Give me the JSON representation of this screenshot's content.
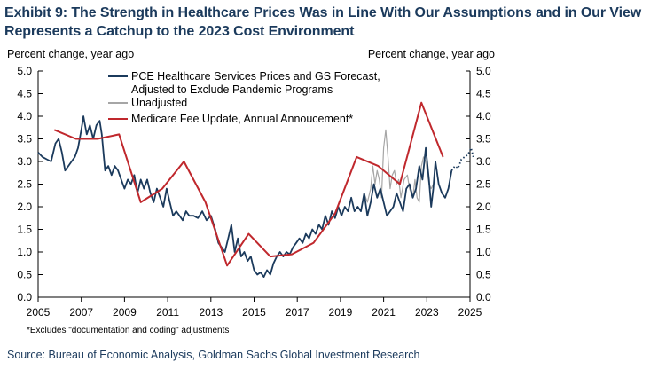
{
  "title": "Exhibit 9: The Strength in Healthcare Prices Was in Line With Our Assumptions and in Our View Represents a Catchup to the 2023 Cost Environment",
  "note": "*Excludes \"documentation and coding\" adjustments",
  "source": "Source: Bureau of Economic Analysis, Goldman Sachs Global Investment Research",
  "chart_data": {
    "type": "line",
    "ylabel_left": "Percent change, year ago",
    "ylabel_right": "Percent change, year ago",
    "xlim": [
      2005,
      2025
    ],
    "ylim": [
      0.0,
      5.0
    ],
    "x_ticks": [
      "2005",
      "2007",
      "2009",
      "2011",
      "2013",
      "2015",
      "2017",
      "2019",
      "2021",
      "2023",
      "2025"
    ],
    "y_ticks": [
      "0.0",
      "0.5",
      "1.0",
      "1.5",
      "2.0",
      "2.5",
      "3.0",
      "3.5",
      "4.0",
      "4.5",
      "5.0"
    ],
    "grid": false,
    "legend_position": "top-center",
    "legend": [
      "PCE Healthcare Services Prices and GS Forecast, Adjusted to Exclude Pandemic Programs",
      "Unadjusted",
      "Medicare Fee Update, Annual Annoucement*"
    ],
    "colors": {
      "pce": "#1b3a5c",
      "unadjusted": "#a6a6a6",
      "medicare": "#c0282d",
      "forecast": "#1b3a5c"
    },
    "series": [
      {
        "name": "PCE Healthcare Services Prices and GS Forecast, Adjusted to Exclude Pandemic Programs",
        "style": "solid",
        "points": [
          [
            2005.0,
            3.2
          ],
          [
            2005.2,
            3.1
          ],
          [
            2005.4,
            3.05
          ],
          [
            2005.6,
            3.0
          ],
          [
            2005.8,
            3.4
          ],
          [
            2005.95,
            3.5
          ],
          [
            2006.1,
            3.2
          ],
          [
            2006.25,
            2.8
          ],
          [
            2006.4,
            2.9
          ],
          [
            2006.55,
            3.0
          ],
          [
            2006.7,
            3.1
          ],
          [
            2006.85,
            3.3
          ],
          [
            2007.0,
            3.7
          ],
          [
            2007.1,
            4.0
          ],
          [
            2007.25,
            3.6
          ],
          [
            2007.4,
            3.8
          ],
          [
            2007.55,
            3.5
          ],
          [
            2007.7,
            3.8
          ],
          [
            2007.85,
            3.9
          ],
          [
            2007.95,
            3.6
          ],
          [
            2008.1,
            2.8
          ],
          [
            2008.25,
            2.9
          ],
          [
            2008.4,
            2.7
          ],
          [
            2008.55,
            2.9
          ],
          [
            2008.7,
            2.8
          ],
          [
            2008.85,
            2.6
          ],
          [
            2009.0,
            2.4
          ],
          [
            2009.15,
            2.6
          ],
          [
            2009.3,
            2.5
          ],
          [
            2009.45,
            2.7
          ],
          [
            2009.6,
            2.3
          ],
          [
            2009.75,
            2.6
          ],
          [
            2009.9,
            2.4
          ],
          [
            2010.05,
            2.6
          ],
          [
            2010.2,
            2.3
          ],
          [
            2010.35,
            2.1
          ],
          [
            2010.5,
            2.4
          ],
          [
            2010.65,
            2.2
          ],
          [
            2010.8,
            2.0
          ],
          [
            2010.95,
            2.4
          ],
          [
            2011.1,
            2.1
          ],
          [
            2011.25,
            1.8
          ],
          [
            2011.4,
            1.9
          ],
          [
            2011.55,
            1.8
          ],
          [
            2011.7,
            1.7
          ],
          [
            2011.85,
            1.9
          ],
          [
            2012.0,
            1.8
          ],
          [
            2012.2,
            1.8
          ],
          [
            2012.4,
            1.75
          ],
          [
            2012.6,
            1.9
          ],
          [
            2012.8,
            1.7
          ],
          [
            2013.0,
            1.8
          ],
          [
            2013.2,
            1.5
          ],
          [
            2013.35,
            1.2
          ],
          [
            2013.5,
            1.1
          ],
          [
            2013.65,
            1.0
          ],
          [
            2013.8,
            1.3
          ],
          [
            2013.95,
            1.6
          ],
          [
            2014.1,
            1.0
          ],
          [
            2014.25,
            1.3
          ],
          [
            2014.4,
            0.9
          ],
          [
            2014.55,
            1.0
          ],
          [
            2014.7,
            0.8
          ],
          [
            2014.85,
            0.9
          ],
          [
            2015.0,
            0.6
          ],
          [
            2015.15,
            0.5
          ],
          [
            2015.3,
            0.55
          ],
          [
            2015.45,
            0.45
          ],
          [
            2015.6,
            0.6
          ],
          [
            2015.75,
            0.5
          ],
          [
            2015.9,
            0.75
          ],
          [
            2016.05,
            0.9
          ],
          [
            2016.2,
            1.0
          ],
          [
            2016.35,
            0.9
          ],
          [
            2016.5,
            1.0
          ],
          [
            2016.65,
            0.95
          ],
          [
            2016.8,
            1.1
          ],
          [
            2016.95,
            1.2
          ],
          [
            2017.1,
            1.3
          ],
          [
            2017.25,
            1.2
          ],
          [
            2017.4,
            1.4
          ],
          [
            2017.55,
            1.3
          ],
          [
            2017.7,
            1.5
          ],
          [
            2017.85,
            1.4
          ],
          [
            2018.0,
            1.6
          ],
          [
            2018.15,
            1.5
          ],
          [
            2018.3,
            1.8
          ],
          [
            2018.45,
            1.6
          ],
          [
            2018.6,
            1.9
          ],
          [
            2018.75,
            1.75
          ],
          [
            2018.9,
            2.0
          ],
          [
            2019.05,
            1.8
          ],
          [
            2019.2,
            2.0
          ],
          [
            2019.35,
            1.9
          ],
          [
            2019.5,
            2.2
          ],
          [
            2019.65,
            1.9
          ],
          [
            2019.8,
            2.0
          ],
          [
            2019.95,
            1.9
          ],
          [
            2020.1,
            2.3
          ],
          [
            2020.25,
            1.8
          ],
          [
            2020.4,
            2.1
          ],
          [
            2020.55,
            2.5
          ],
          [
            2020.7,
            2.2
          ],
          [
            2020.85,
            2.4
          ],
          [
            2021.0,
            2.1
          ],
          [
            2021.15,
            1.8
          ],
          [
            2021.3,
            1.9
          ],
          [
            2021.45,
            2.0
          ],
          [
            2021.6,
            2.3
          ],
          [
            2021.75,
            2.1
          ],
          [
            2021.9,
            1.9
          ],
          [
            2022.05,
            2.4
          ],
          [
            2022.2,
            2.5
          ],
          [
            2022.35,
            2.2
          ],
          [
            2022.5,
            2.4
          ],
          [
            2022.65,
            2.9
          ],
          [
            2022.8,
            2.6
          ],
          [
            2022.95,
            3.3
          ],
          [
            2023.1,
            2.6
          ],
          [
            2023.2,
            2.0
          ],
          [
            2023.3,
            2.4
          ],
          [
            2023.4,
            3.0
          ],
          [
            2023.55,
            2.5
          ],
          [
            2023.7,
            2.3
          ],
          [
            2023.85,
            2.2
          ],
          [
            2024.0,
            2.4
          ],
          [
            2024.15,
            2.8
          ]
        ]
      },
      {
        "name": "Unadjusted",
        "style": "solid",
        "points": [
          [
            2020.1,
            2.3
          ],
          [
            2020.25,
            2.1
          ],
          [
            2020.4,
            2.4
          ],
          [
            2020.5,
            2.9
          ],
          [
            2020.6,
            2.5
          ],
          [
            2020.7,
            2.8
          ],
          [
            2020.8,
            2.6
          ],
          [
            2020.9,
            2.2
          ],
          [
            2021.0,
            3.3
          ],
          [
            2021.1,
            3.7
          ],
          [
            2021.2,
            3.1
          ],
          [
            2021.3,
            2.4
          ],
          [
            2021.4,
            2.7
          ],
          [
            2021.5,
            2.8
          ],
          [
            2021.6,
            2.5
          ],
          [
            2021.7,
            2.6
          ],
          [
            2021.8,
            2.2
          ],
          [
            2021.95,
            2.6
          ],
          [
            2022.1,
            2.7
          ],
          [
            2022.2,
            2.4
          ],
          [
            2022.35,
            2.2
          ],
          [
            2022.45,
            2.6
          ],
          [
            2022.55,
            2.2
          ],
          [
            2022.65,
            2.1
          ],
          [
            2022.75,
            2.9
          ],
          [
            2022.85,
            3.1
          ],
          [
            2022.95,
            3.0
          ],
          [
            2023.1,
            2.5
          ],
          [
            2023.2,
            2.4
          ],
          [
            2023.3,
            2.5
          ]
        ]
      },
      {
        "name": "GS Forecast",
        "style": "dotted",
        "points": [
          [
            2024.15,
            2.8
          ],
          [
            2024.3,
            2.9
          ],
          [
            2024.45,
            2.85
          ],
          [
            2024.6,
            3.05
          ],
          [
            2024.75,
            3.1
          ],
          [
            2024.9,
            3.15
          ],
          [
            2025.05,
            3.3
          ],
          [
            2025.15,
            3.1
          ]
        ]
      },
      {
        "name": "Medicare Fee Update, Annual Annoucement*",
        "style": "solid",
        "points": [
          [
            2005.75,
            3.7
          ],
          [
            2006.75,
            3.5
          ],
          [
            2007.75,
            3.5
          ],
          [
            2008.75,
            3.6
          ],
          [
            2009.75,
            2.1
          ],
          [
            2010.75,
            2.4
          ],
          [
            2011.75,
            3.0
          ],
          [
            2012.75,
            2.1
          ],
          [
            2013.75,
            0.7
          ],
          [
            2014.75,
            1.4
          ],
          [
            2015.75,
            0.9
          ],
          [
            2016.75,
            0.95
          ],
          [
            2017.75,
            1.2
          ],
          [
            2018.75,
            1.85
          ],
          [
            2019.75,
            3.1
          ],
          [
            2020.75,
            2.9
          ],
          [
            2021.75,
            2.5
          ],
          [
            2022.75,
            4.3
          ],
          [
            2023.75,
            3.1
          ]
        ]
      }
    ]
  }
}
